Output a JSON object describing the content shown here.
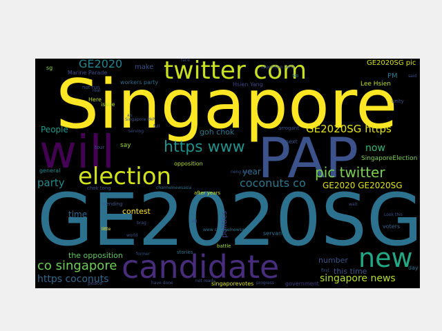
{
  "words": [
    {
      "text": "Singapore",
      "color": "#fde725"
    },
    {
      "text": "GE2020SG",
      "color": "#2c728e"
    },
    {
      "text": "PAP",
      "color": "#3b528b"
    },
    {
      "text": "will",
      "color": "#440154"
    },
    {
      "text": "candidate",
      "color": "#472d7b"
    },
    {
      "text": "twitter com",
      "color": "#c8e020"
    },
    {
      "text": "election",
      "color": "#d2e21b"
    },
    {
      "text": "new",
      "color": "#22a884"
    },
    {
      "text": "https www",
      "color": "#21918c"
    },
    {
      "text": "pic twitter",
      "color": "#7ad151"
    },
    {
      "text": "GE2020SG https",
      "color": "#e5e419"
    },
    {
      "text": "coconuts co",
      "color": "#2a788e"
    },
    {
      "text": "party",
      "color": "#238a8d"
    },
    {
      "text": "co singapore",
      "color": "#6ece58"
    },
    {
      "text": "singapore news",
      "color": "#b5de2b"
    },
    {
      "text": "GE2020 GE2020SG",
      "color": "#dde318"
    },
    {
      "text": "https coconuts",
      "color": "#31688e"
    },
    {
      "text": "GE2020",
      "color": "#25858e"
    },
    {
      "text": "GE2020SG pic",
      "color": "#d8e219"
    },
    {
      "text": "People",
      "color": "#1f988b"
    },
    {
      "text": "politics",
      "color": "#3e4989"
    },
    {
      "text": "year",
      "color": "#2d708e"
    },
    {
      "text": "now",
      "color": "#35b779"
    },
    {
      "text": "the opposition",
      "color": "#5ec962"
    },
    {
      "text": "number",
      "color": "#3a538b"
    },
    {
      "text": "contest",
      "color": "#fde725"
    },
    {
      "text": "goh chok",
      "color": "#2a788e"
    },
    {
      "text": "SingaporeElection",
      "color": "#7fd34e"
    },
    {
      "text": "opposition",
      "color": "#b8de29"
    },
    {
      "text": "Lee Hsien",
      "color": "#bddf26"
    },
    {
      "text": "Hsien Yang",
      "color": "#3f4788"
    },
    {
      "text": "workers party",
      "color": "#2e6e8e"
    },
    {
      "text": "Marine Parade",
      "color": "#3d4d8a"
    },
    {
      "text": "issue",
      "color": "#b2dd2d"
    },
    {
      "text": "Here",
      "color": "#bade28"
    },
    {
      "text": "say",
      "color": "#9dd93b"
    },
    {
      "text": "time",
      "color": "#31688e"
    },
    {
      "text": "general",
      "color": "#228c8d"
    },
    {
      "text": "PM",
      "color": "#2a788e"
    },
    {
      "text": "singaporevotes",
      "color": "#e2e418"
    },
    {
      "text": "government",
      "color": "#423f85"
    },
    {
      "text": "this time",
      "color": "#3b528b"
    },
    {
      "text": "chok tong",
      "color": "#3b528b"
    },
    {
      "text": "trending",
      "color": "#38588c"
    },
    {
      "text": "after years",
      "color": "#d5e21a"
    },
    {
      "text": "stories",
      "color": "#2c728e"
    },
    {
      "text": "battle",
      "color": "#a0da39"
    },
    {
      "text": "voters",
      "color": "#31688e"
    },
    {
      "text": "servants",
      "color": "#2c728e"
    },
    {
      "text": "make",
      "color": "#3b528b"
    },
    {
      "text": "sg",
      "color": "#8bd646"
    },
    {
      "text": "day",
      "color": "#2c728e"
    },
    {
      "text": "No",
      "color": "#2c728e"
    },
    {
      "text": "unity",
      "color": "#3b528b"
    },
    {
      "text": "arrogant",
      "color": "#3b528b"
    },
    {
      "text": "next",
      "color": "#3b528b"
    },
    {
      "text": "face",
      "color": "#3b528b"
    },
    {
      "text": "not run",
      "color": "#3b528b"
    },
    {
      "text": "little",
      "color": "#fde725"
    },
    {
      "text": "former",
      "color": "#3b528b"
    },
    {
      "text": "progress",
      "color": "#3b528b"
    },
    {
      "text": "have done",
      "color": "#3b528b"
    },
    {
      "text": "not ready",
      "color": "#3b528b"
    },
    {
      "text": "first",
      "color": "#3b528b"
    },
    {
      "text": "said",
      "color": "#3b528b"
    },
    {
      "text": "wait",
      "color": "#3b528b"
    },
    {
      "text": "full",
      "color": "#3b528b"
    },
    {
      "text": "serving",
      "color": "#3b528b"
    },
    {
      "text": "brag",
      "color": "#3b528b"
    },
    {
      "text": "world",
      "color": "#3b528b"
    },
    {
      "text": "tour",
      "color": "#3b528b"
    },
    {
      "text": "All",
      "color": "#3b528b"
    },
    {
      "text": "Look this",
      "color": "#3b528b"
    },
    {
      "text": "neng oaee",
      "color": "#3b528b"
    },
    {
      "text": "peace",
      "color": "#3b528b"
    },
    {
      "text": "channelnewsasia",
      "color": "#2c728e"
    },
    {
      "text": "www channelnewsasia",
      "color": "#2c728e"
    },
    {
      "text": "opposition party",
      "color": "#3b528b"
    },
    {
      "text": "Singapore PAP",
      "color": "#3b528b"
    },
    {
      "text": "real",
      "color": "#3b528b"
    },
    {
      "text": "an",
      "color": "#3b528b"
    },
    {
      "text": "good",
      "color": "#3b528b"
    }
  ]
}
